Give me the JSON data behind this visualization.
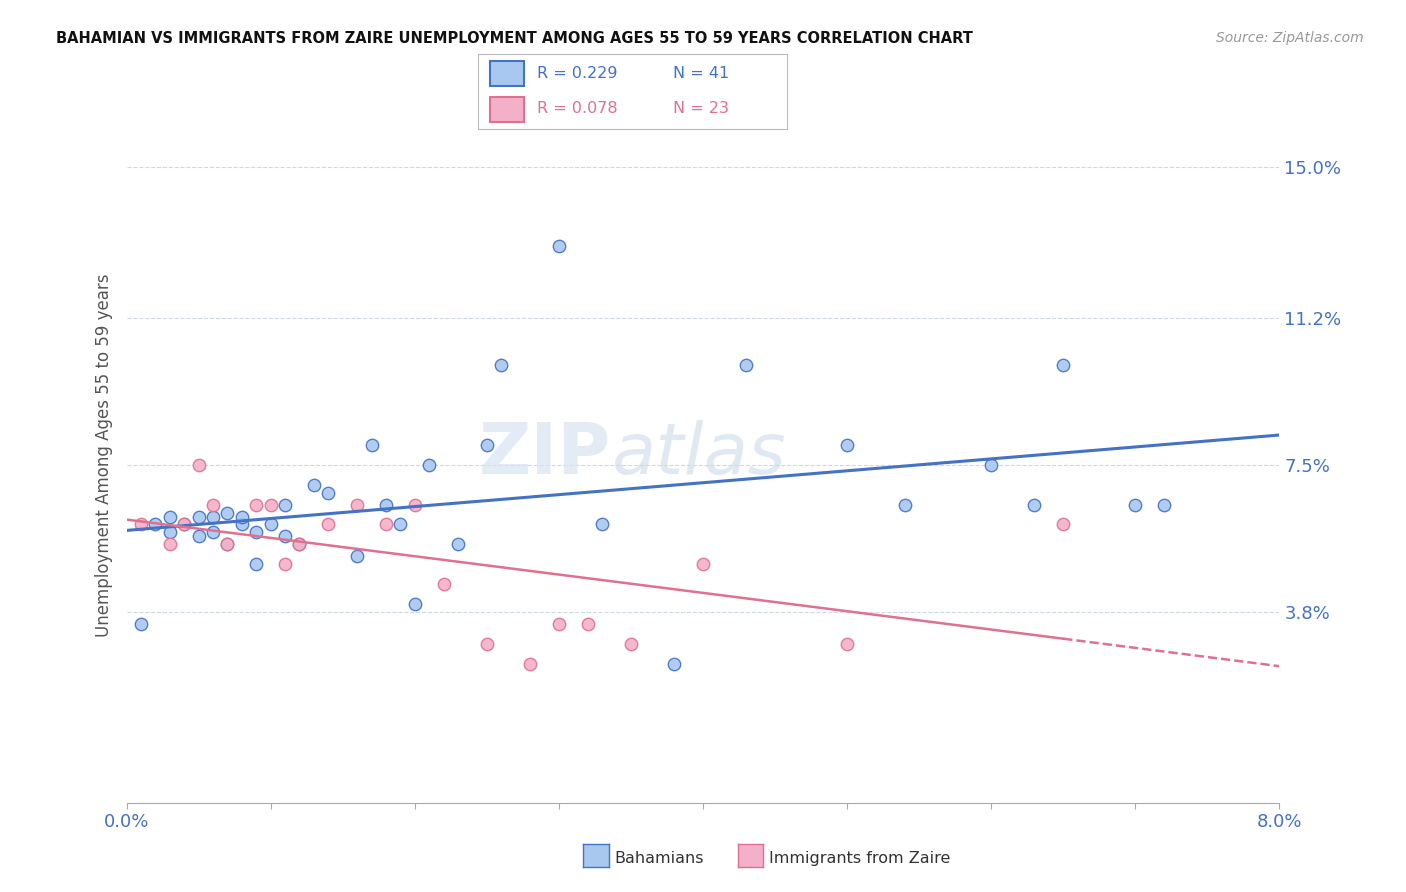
{
  "title": "BAHAMIAN VS IMMIGRANTS FROM ZAIRE UNEMPLOYMENT AMONG AGES 55 TO 59 YEARS CORRELATION CHART",
  "source": "Source: ZipAtlas.com",
  "ylabel": "Unemployment Among Ages 55 to 59 years",
  "xlim": [
    0.0,
    0.08
  ],
  "ylim": [
    -0.01,
    0.165
  ],
  "xticks": [
    0.0,
    0.01,
    0.02,
    0.03,
    0.04,
    0.05,
    0.06,
    0.07,
    0.08
  ],
  "xticklabels": [
    "0.0%",
    "",
    "",
    "",
    "",
    "",
    "",
    "",
    "8.0%"
  ],
  "right_yticks": [
    0.038,
    0.075,
    0.112,
    0.15
  ],
  "right_yticklabels": [
    "3.8%",
    "7.5%",
    "11.2%",
    "15.0%"
  ],
  "bahamians_x": [
    0.001,
    0.002,
    0.003,
    0.003,
    0.004,
    0.005,
    0.005,
    0.006,
    0.006,
    0.007,
    0.007,
    0.008,
    0.008,
    0.009,
    0.009,
    0.01,
    0.011,
    0.011,
    0.012,
    0.013,
    0.014,
    0.016,
    0.017,
    0.018,
    0.019,
    0.02,
    0.021,
    0.023,
    0.025,
    0.026,
    0.03,
    0.033,
    0.038,
    0.043,
    0.05,
    0.054,
    0.06,
    0.063,
    0.065,
    0.07,
    0.072
  ],
  "bahamians_y": [
    0.035,
    0.06,
    0.058,
    0.062,
    0.06,
    0.057,
    0.062,
    0.058,
    0.062,
    0.063,
    0.055,
    0.06,
    0.062,
    0.058,
    0.05,
    0.06,
    0.057,
    0.065,
    0.055,
    0.07,
    0.068,
    0.052,
    0.08,
    0.065,
    0.06,
    0.04,
    0.075,
    0.055,
    0.08,
    0.1,
    0.13,
    0.06,
    0.025,
    0.1,
    0.08,
    0.065,
    0.075,
    0.065,
    0.1,
    0.065,
    0.065
  ],
  "zaire_x": [
    0.001,
    0.003,
    0.004,
    0.005,
    0.006,
    0.007,
    0.009,
    0.01,
    0.011,
    0.012,
    0.014,
    0.016,
    0.018,
    0.02,
    0.022,
    0.025,
    0.028,
    0.03,
    0.032,
    0.035,
    0.04,
    0.05,
    0.065
  ],
  "zaire_y": [
    0.06,
    0.055,
    0.06,
    0.075,
    0.065,
    0.055,
    0.065,
    0.065,
    0.05,
    0.055,
    0.06,
    0.065,
    0.06,
    0.065,
    0.045,
    0.03,
    0.025,
    0.035,
    0.035,
    0.03,
    0.05,
    0.03,
    0.06
  ],
  "bahamian_color": "#a8c8f0",
  "zaire_color": "#f4b0c8",
  "bahamian_line_color": "#4472c4",
  "zaire_line_color": "#e07090",
  "legend_R_bahamian": "R = 0.229",
  "legend_N_bahamian": "N = 41",
  "legend_R_zaire": "R = 0.078",
  "legend_N_zaire": "N = 23",
  "watermark_ZIP": "ZIP",
  "watermark_atlas": "atlas",
  "background_color": "#ffffff",
  "grid_color": "#d0d8e8"
}
